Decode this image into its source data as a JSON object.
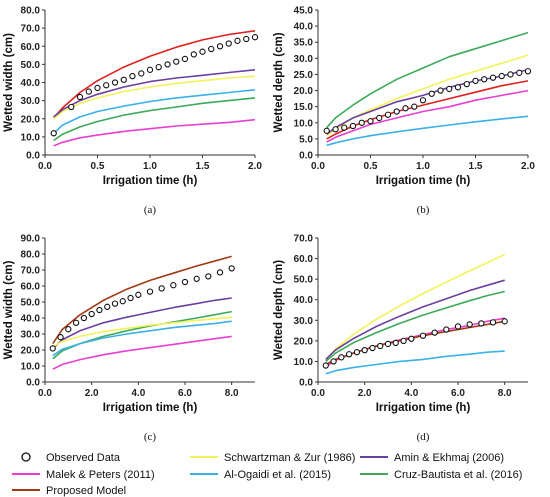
{
  "chart_data": [
    {
      "id": "a",
      "type": "line",
      "caption": "(a)",
      "xlabel": "Irrigation time (h)",
      "ylabel": "Wetted width (cm)",
      "xlim": [
        0,
        2.0
      ],
      "ylim": [
        0,
        80.0
      ],
      "xticks": [
        0,
        0.5,
        1.0,
        1.5,
        2.0
      ],
      "xtick_labels": [
        "0.0",
        "0.5",
        "1.0",
        "1.5",
        "2.0"
      ],
      "yticks": [
        0,
        10,
        20,
        30,
        40,
        50,
        60,
        70,
        80
      ],
      "ytick_labels": [
        "0.0",
        "10.0",
        "20.0",
        "30.0",
        "40.0",
        "50.0",
        "60.0",
        "70.0",
        "80.0"
      ],
      "curve_x": [
        0.083,
        0.167,
        0.333,
        0.5,
        0.75,
        1.0,
        1.25,
        1.5,
        1.75,
        2.0
      ],
      "series": [
        {
          "key": "proposed",
          "values": [
            20.5,
            26,
            34.5,
            41,
            48.5,
            54.5,
            59.5,
            63.5,
            66.5,
            68.5
          ]
        },
        {
          "key": "schwartzman",
          "values": [
            20,
            24,
            28.5,
            31.5,
            35,
            37.5,
            39.5,
            41,
            42.5,
            43.5
          ]
        },
        {
          "key": "amin",
          "values": [
            21,
            25,
            30,
            33.5,
            37.5,
            40.5,
            42.5,
            44,
            45.5,
            47
          ]
        },
        {
          "key": "alogaidi",
          "values": [
            12,
            16.5,
            21,
            24,
            27,
            29.5,
            31.5,
            33,
            34.5,
            36
          ]
        },
        {
          "key": "cruz",
          "values": [
            8,
            11.5,
            15.5,
            18.5,
            22,
            24.5,
            26.5,
            28.5,
            30,
            31.5
          ]
        },
        {
          "key": "malek",
          "values": [
            5,
            7,
            9.5,
            11,
            13,
            14.5,
            16,
            17,
            18,
            19.5
          ]
        }
      ],
      "observed": {
        "x": [
          0.083,
          0.25,
          0.333,
          0.417,
          0.5,
          0.583,
          0.667,
          0.75,
          0.833,
          0.917,
          1.0,
          1.083,
          1.167,
          1.25,
          1.333,
          1.417,
          1.5,
          1.583,
          1.667,
          1.75,
          1.833,
          1.917,
          2.0
        ],
        "y": [
          12,
          26.5,
          32,
          35,
          37,
          38.5,
          40,
          41.5,
          43.5,
          45,
          47,
          48.5,
          50,
          51.5,
          53,
          55.5,
          57,
          58.5,
          60,
          61.5,
          63,
          64,
          65
        ]
      }
    },
    {
      "id": "b",
      "type": "line",
      "caption": "(b)",
      "xlabel": "Irrigation time (h)",
      "ylabel": "Wetted depth (cm)",
      "xlim": [
        0,
        2.0
      ],
      "ylim": [
        0,
        45.0
      ],
      "xticks": [
        0,
        0.5,
        1.0,
        1.5,
        2.0
      ],
      "xtick_labels": [
        "0.0",
        "0.5",
        "1.0",
        "1.5",
        "2.0"
      ],
      "yticks": [
        0,
        5,
        10,
        15,
        20,
        25,
        30,
        35,
        40,
        45
      ],
      "ytick_labels": [
        "0.0",
        "5.0",
        "10.0",
        "15.0",
        "20.0",
        "25.0",
        "30.0",
        "35.0",
        "40.0",
        "45.0"
      ],
      "curve_x": [
        0.083,
        0.167,
        0.333,
        0.5,
        0.75,
        1.0,
        1.25,
        1.5,
        1.75,
        2.0
      ],
      "series": [
        {
          "key": "cruz",
          "values": [
            8.5,
            11.5,
            15.5,
            19,
            23.5,
            27,
            30.5,
            33,
            35.5,
            38
          ]
        },
        {
          "key": "schwartzman",
          "values": [
            6,
            8,
            11.5,
            14,
            17.5,
            20.5,
            23.5,
            26,
            28.5,
            31
          ]
        },
        {
          "key": "amin",
          "values": [
            6.5,
            8.5,
            11.5,
            13.5,
            16.5,
            18.5,
            21,
            23,
            24.5,
            26.5
          ]
        },
        {
          "key": "proposed",
          "values": [
            5,
            6.5,
            9,
            11,
            13.5,
            15.5,
            17.5,
            19.5,
            21.5,
            23
          ]
        },
        {
          "key": "malek",
          "values": [
            4,
            5.5,
            7.5,
            9.5,
            11.5,
            13.5,
            15,
            17,
            18.5,
            20
          ]
        },
        {
          "key": "alogaidi",
          "values": [
            3,
            3.8,
            5,
            6,
            7.2,
            8.3,
            9.3,
            10.3,
            11.2,
            12
          ]
        }
      ],
      "observed": {
        "x": [
          0.083,
          0.167,
          0.25,
          0.333,
          0.417,
          0.5,
          0.583,
          0.667,
          0.75,
          0.833,
          0.917,
          1.0,
          1.083,
          1.167,
          1.25,
          1.333,
          1.417,
          1.5,
          1.583,
          1.667,
          1.75,
          1.833,
          1.917,
          2.0
        ],
        "y": [
          7.5,
          8,
          8.5,
          9,
          10,
          10.5,
          11.5,
          12.5,
          13.5,
          14.5,
          15,
          17,
          19,
          20,
          20.5,
          21,
          22,
          23,
          23.5,
          24,
          24.5,
          25,
          25.5,
          26
        ]
      }
    },
    {
      "id": "c",
      "type": "line",
      "caption": "(c)",
      "xlabel": "Irrigation time (h)",
      "ylabel": "Wetted width (cm)",
      "xlim": [
        0,
        9.0
      ],
      "ylim": [
        0,
        90.0
      ],
      "xticks": [
        0,
        2,
        4,
        6,
        8
      ],
      "xtick_labels": [
        "0.0",
        "2.0",
        "4.0",
        "6.0",
        "8.0"
      ],
      "yticks": [
        0,
        10,
        20,
        30,
        40,
        50,
        60,
        70,
        80,
        90
      ],
      "ytick_labels": [
        "0.0",
        "10.0",
        "20.0",
        "30.0",
        "40.0",
        "50.0",
        "60.0",
        "70.0",
        "80.0",
        "90.0"
      ],
      "curve_x": [
        0.333,
        0.75,
        1.5,
        2.5,
        3.5,
        4.5,
        5.5,
        6.5,
        7.25,
        8.0
      ],
      "series": [
        {
          "key": "proposed",
          "values": [
            24,
            33,
            42,
            51,
            58,
            63.5,
            68,
            72.5,
            75.5,
            78.5
          ]
        },
        {
          "key": "amin",
          "values": [
            21,
            26.5,
            32,
            37,
            40.5,
            43.5,
            46.5,
            49,
            51,
            52.5
          ]
        },
        {
          "key": "cruz",
          "values": [
            14.5,
            19.5,
            24,
            28.5,
            32,
            35,
            37.5,
            40,
            42,
            44
          ]
        },
        {
          "key": "schwartzman",
          "values": [
            22,
            25.5,
            28.5,
            31.5,
            33.5,
            35.5,
            37,
            38.5,
            39.5,
            40.5
          ]
        },
        {
          "key": "alogaidi",
          "values": [
            16.5,
            20.5,
            24,
            27.5,
            30,
            32,
            34,
            35.5,
            36.5,
            38
          ]
        },
        {
          "key": "malek",
          "values": [
            8,
            11,
            14,
            17,
            19.5,
            21.5,
            23.5,
            25.5,
            27,
            28.5
          ]
        }
      ],
      "observed": {
        "x": [
          0.333,
          0.667,
          1.0,
          1.333,
          1.667,
          2.0,
          2.333,
          2.667,
          3.0,
          3.333,
          3.667,
          4.0,
          4.5,
          5.0,
          5.5,
          6.0,
          6.5,
          7.0,
          7.5,
          8.0
        ],
        "y": [
          21,
          28,
          33,
          37,
          40,
          42.5,
          45,
          47,
          49,
          50.5,
          52.5,
          54.5,
          56.5,
          58.5,
          60.5,
          62.5,
          64.5,
          66,
          68.5,
          71
        ]
      }
    },
    {
      "id": "d",
      "type": "line",
      "caption": "(d)",
      "xlabel": "Irrigation time (h)",
      "ylabel": "Wetted depth (cm)",
      "xlim": [
        0,
        9.0
      ],
      "ylim": [
        0,
        70.0
      ],
      "xticks": [
        0,
        2,
        4,
        6,
        8
      ],
      "xtick_labels": [
        "0.0",
        "2.0",
        "4.0",
        "6.0",
        "8.0"
      ],
      "yticks": [
        0,
        10,
        20,
        30,
        40,
        50,
        60,
        70
      ],
      "ytick_labels": [
        "0.0",
        "10.0",
        "20.0",
        "30.0",
        "40.0",
        "50.0",
        "60.0",
        "70.0"
      ],
      "curve_x": [
        0.333,
        0.75,
        1.5,
        2.5,
        3.5,
        4.5,
        5.5,
        6.5,
        7.25,
        8.0
      ],
      "series": [
        {
          "key": "schwartzman",
          "values": [
            11,
            16,
            23,
            30.5,
            37,
            43,
            48.5,
            54,
            58,
            62
          ]
        },
        {
          "key": "amin",
          "values": [
            11,
            15.5,
            21,
            27,
            32,
            36.5,
            40.5,
            44.5,
            47,
            49.5
          ]
        },
        {
          "key": "cruz",
          "values": [
            10,
            14,
            19,
            24,
            28.5,
            32.5,
            36,
            39.5,
            42,
            44
          ]
        },
        {
          "key": "malek",
          "values": [
            7.5,
            10.5,
            14,
            17.5,
            20.5,
            23,
            25.5,
            27.5,
            29.5,
            31
          ]
        },
        {
          "key": "proposed",
          "values": [
            8.5,
            11,
            14,
            17.5,
            20,
            22.5,
            24.5,
            26.5,
            28,
            29.5
          ]
        },
        {
          "key": "alogaidi",
          "values": [
            4,
            5.5,
            7,
            8.5,
            10,
            11,
            12.5,
            13.5,
            14.5,
            15
          ]
        }
      ],
      "observed": {
        "x": [
          0.333,
          0.667,
          1.0,
          1.333,
          1.667,
          2.0,
          2.333,
          2.667,
          3.0,
          3.333,
          3.667,
          4.0,
          4.5,
          5.0,
          5.5,
          6.0,
          6.5,
          7.0,
          7.5,
          8.0
        ],
        "y": [
          8,
          10,
          12,
          13.5,
          14.5,
          15.5,
          16.5,
          17.5,
          18.5,
          19,
          20,
          21,
          22.5,
          24,
          25.5,
          27,
          28,
          28.5,
          29,
          29.5
        ]
      }
    }
  ],
  "legend": {
    "items": [
      {
        "key": "observed",
        "label": "Observed Data",
        "marker": "circle",
        "color": "#111111"
      },
      {
        "key": "schwartzman",
        "label": "Schwartzman & Zur (1986)",
        "marker": "line",
        "color": "#f2f25a"
      },
      {
        "key": "amin",
        "label": "Amin & Ekhmaj (2006)",
        "marker": "line",
        "color": "#6a3fa0"
      },
      {
        "key": "malek",
        "label": "Malek & Peters (2011)",
        "marker": "line",
        "color": "#e83fd0"
      },
      {
        "key": "alogaidi",
        "label": "Al-Ogaidi et al. (2015)",
        "marker": "line",
        "color": "#3ab0ea"
      },
      {
        "key": "cruz",
        "label": "Cruz-Bautista et al. (2016)",
        "marker": "line",
        "color": "#3caa5a"
      },
      {
        "key": "proposed",
        "label": "Proposed Model",
        "marker": "line",
        "color": "#a03a14"
      }
    ]
  },
  "colors": {
    "proposed_a": "#e02020",
    "proposed_b": "#e02020"
  }
}
